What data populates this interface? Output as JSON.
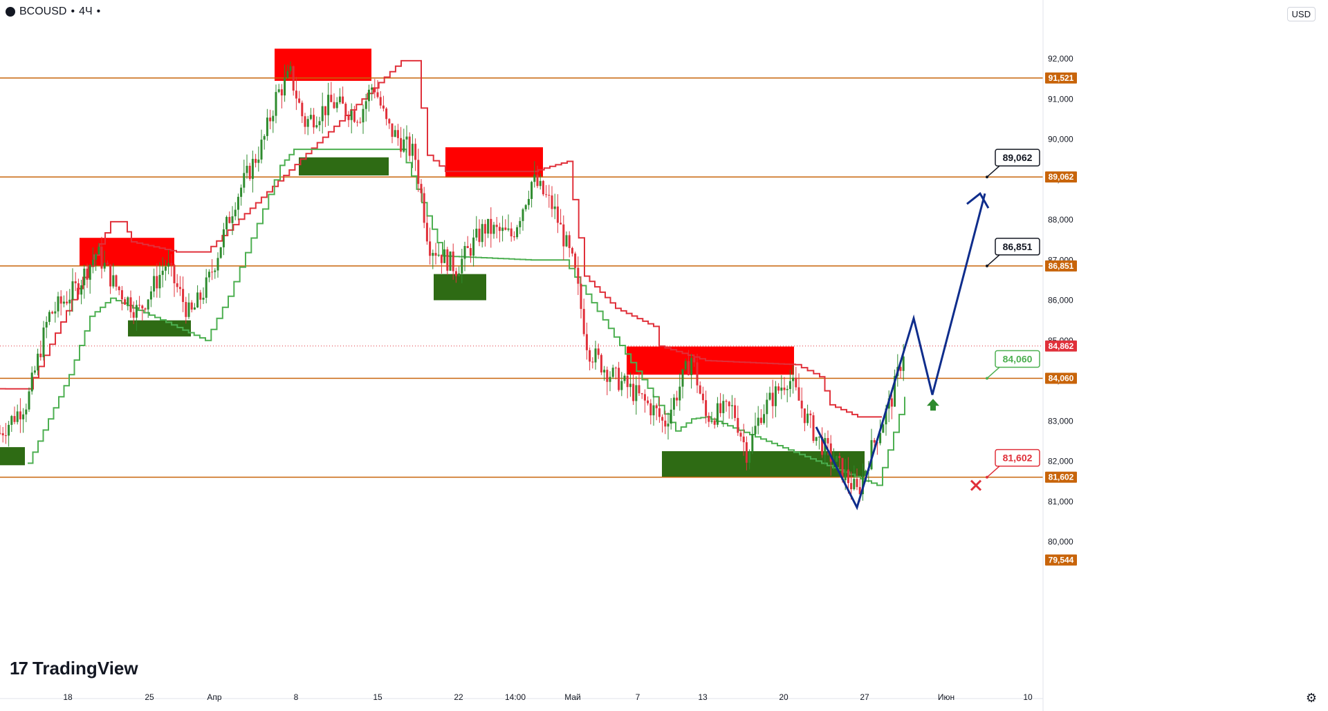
{
  "header": {
    "symbol": "BCOUSD",
    "separator": "•",
    "interval": "4Ч",
    "dot": "•",
    "currency": "USD"
  },
  "brand": {
    "logo_mark": "17",
    "name": "TradingView"
  },
  "icons": {
    "settings": "gear-icon",
    "symbol": "drop-icon"
  },
  "colors": {
    "level_line": "#c8640a",
    "up": "#2e8b2e",
    "down": "#e0303a",
    "supply_zone": "#ff0000",
    "demand_zone": "#2e6b14",
    "projection": "#0f2d8c",
    "target_up": "#2e8b2e",
    "stop": "#e0303a"
  },
  "chart_data": {
    "type": "candlestick",
    "ylim": [
      79.544,
      93.3
    ],
    "y_ticks": [
      "92,000",
      "91,000",
      "90,000",
      "89,000",
      "88,000",
      "87,000",
      "86,000",
      "85,000",
      "84,000",
      "83,000",
      "82,000",
      "81,000",
      "80,000"
    ],
    "y_tick_values": [
      92,
      91,
      90,
      89,
      88,
      87,
      86,
      85,
      84,
      83,
      82,
      81,
      80
    ],
    "x_ticks": [
      "18",
      "25",
      "Апр",
      "8",
      "15",
      "22",
      "14:00",
      "Май",
      "7",
      "13",
      "20",
      "27",
      "Июн",
      "10"
    ],
    "x_tick_index": [
      98,
      216,
      310,
      428,
      546,
      663,
      745,
      828,
      922,
      1016,
      1133,
      1250,
      1368,
      1486
    ],
    "x_range": [
      0,
      1505
    ],
    "levels": [
      {
        "value": 91.521,
        "label": "91,521"
      },
      {
        "value": 89.062,
        "label": "89,062"
      },
      {
        "value": 86.851,
        "label": "86,851"
      },
      {
        "value": 84.06,
        "label": "84,060"
      },
      {
        "value": 81.602,
        "label": "81,602"
      }
    ],
    "price_tags": [
      {
        "value": 84.862,
        "label": "84,862",
        "kind": "current"
      },
      {
        "value": 79.544,
        "label": "79,544",
        "kind": "bottom"
      }
    ],
    "callouts": [
      {
        "label": "89,062",
        "value": 89.062,
        "kind": "target"
      },
      {
        "label": "86,851",
        "value": 86.851,
        "kind": "target"
      },
      {
        "label": "84,060",
        "value": 84.06,
        "kind": "support"
      },
      {
        "label": "81,602",
        "value": 81.602,
        "kind": "stop"
      }
    ],
    "supply_zones": [
      {
        "x0": 115,
        "x1": 252,
        "top": 87.55,
        "bottom": 86.85
      },
      {
        "x0": 397,
        "x1": 537,
        "top": 92.25,
        "bottom": 91.45
      },
      {
        "x0": 644,
        "x1": 785,
        "top": 89.8,
        "bottom": 89.05
      },
      {
        "x0": 906,
        "x1": 1148,
        "top": 84.85,
        "bottom": 84.15
      }
    ],
    "demand_zones": [
      {
        "x0": 0,
        "x1": 36,
        "top": 82.35,
        "bottom": 81.9
      },
      {
        "x0": 185,
        "x1": 276,
        "top": 85.5,
        "bottom": 85.1
      },
      {
        "x0": 432,
        "x1": 562,
        "top": 89.55,
        "bottom": 89.1
      },
      {
        "x0": 627,
        "x1": 703,
        "top": 86.65,
        "bottom": 86.0
      },
      {
        "x0": 957,
        "x1": 1250,
        "top": 82.25,
        "bottom": 81.6
      }
    ],
    "projection_path": [
      [
        1180,
        82.85
      ],
      [
        1239,
        80.85
      ],
      [
        1321,
        85.55
      ],
      [
        1348,
        83.65
      ],
      [
        1424,
        88.65
      ]
    ],
    "resistance_trail": [
      [
        0,
        83.8
      ],
      [
        40,
        83.8
      ],
      [
        160,
        87.95
      ],
      [
        178,
        87.95
      ],
      [
        190,
        87.45
      ],
      [
        255,
        87.2
      ],
      [
        297,
        87.2
      ],
      [
        580,
        91.95
      ],
      [
        600,
        91.95
      ],
      [
        618,
        89.6
      ],
      [
        644,
        89.2
      ],
      [
        770,
        89.2
      ],
      [
        820,
        89.45
      ],
      [
        845,
        86.6
      ],
      [
        890,
        85.8
      ],
      [
        945,
        85.35
      ],
      [
        953,
        84.86
      ],
      [
        1020,
        84.5
      ],
      [
        1150,
        84.4
      ],
      [
        1185,
        84.1
      ],
      [
        1200,
        83.4
      ],
      [
        1240,
        83.1
      ],
      [
        1275,
        83.1
      ]
    ],
    "support_trail": [
      [
        40,
        81.95
      ],
      [
        100,
        84.15
      ],
      [
        130,
        85.6
      ],
      [
        160,
        86.05
      ],
      [
        240,
        85.45
      ],
      [
        297,
        85.0
      ],
      [
        330,
        86.1
      ],
      [
        405,
        89.35
      ],
      [
        425,
        89.75
      ],
      [
        580,
        89.75
      ],
      [
        640,
        87.1
      ],
      [
        768,
        87.0
      ],
      [
        815,
        87.0
      ],
      [
        977,
        82.75
      ],
      [
        1000,
        83.05
      ],
      [
        1020,
        83.1
      ],
      [
        1268,
        81.4
      ],
      [
        1308,
        83.6
      ]
    ]
  }
}
